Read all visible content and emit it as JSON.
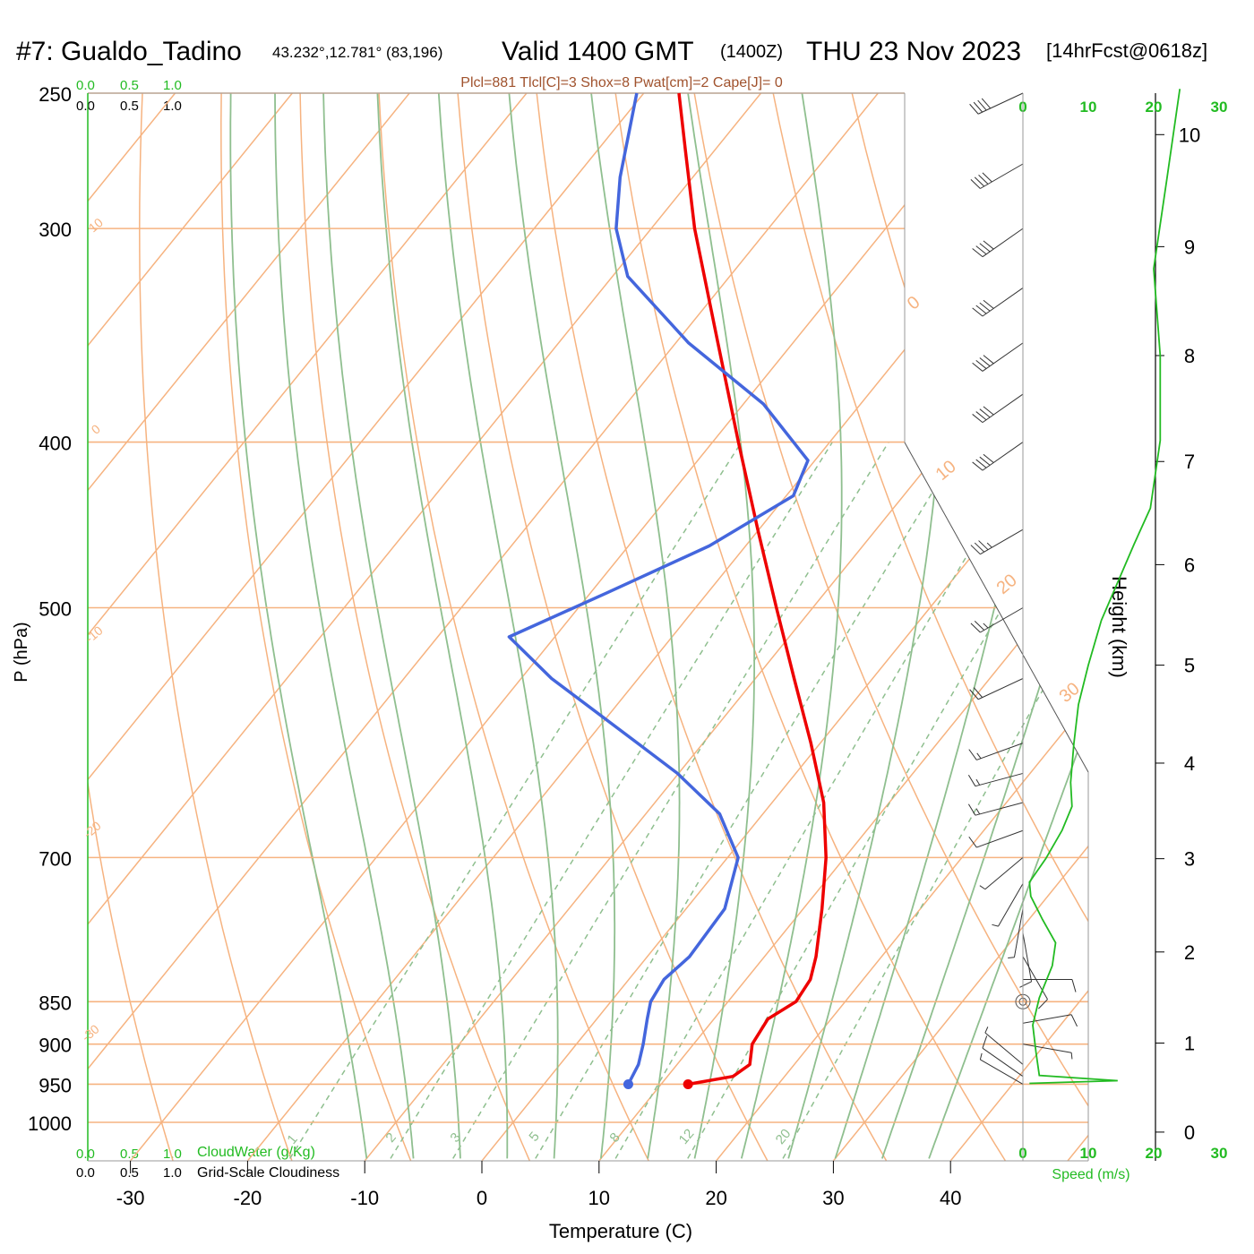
{
  "chart_data": {
    "type": "skew-t",
    "header": {
      "station": "#7: Gualdo_Tadino",
      "coords": "43.232°,12.781° (83,196)",
      "valid": "Valid 1400 GMT",
      "zulu": "(1400Z)",
      "date": "THU 23 Nov 2023",
      "forecast": "[14hrFcst@0618z]"
    },
    "indices": "Plcl=881 Tlcl[C]=3 Shox=8 Pwat[cm]=2 Cape[J]= 0",
    "ylabel": "P (hPa)",
    "xlabel": "Temperature (C)",
    "height_label": "Height (km)",
    "speed_label": "Speed (m/s)",
    "cloud_labels": {
      "cloudwater": "CloudWater (g/Kg)",
      "cloudiness": "Grid-Scale Cloudiness",
      "ticks": [
        "0.0",
        "0.5",
        "1.0"
      ]
    },
    "pressure_ticks": [
      250,
      300,
      400,
      500,
      700,
      850,
      900,
      950,
      1000
    ],
    "temperature_ticks": [
      -30,
      -20,
      -10,
      0,
      10,
      20,
      30,
      40
    ],
    "height_ticks_km": [
      0,
      1,
      2,
      3,
      4,
      5,
      6,
      7,
      8,
      9,
      10
    ],
    "speed_ticks": [
      "0",
      "10",
      "20",
      "30"
    ],
    "isotherm_labels": [
      "10",
      "0",
      "-10",
      "-20",
      "-30",
      "0",
      "10",
      "20",
      "30"
    ],
    "mixing_ratio_labels": [
      "1",
      "2",
      "3",
      "5",
      "8",
      "12",
      "20"
    ],
    "mixing_ratios_gkg": [
      1,
      2,
      3,
      5,
      8,
      12,
      20
    ],
    "temperature_profile": [
      {
        "p": 950,
        "t": 12.3
      },
      {
        "p": 940,
        "t": 15.6
      },
      {
        "p": 925,
        "t": 16.2
      },
      {
        "p": 900,
        "t": 15.0
      },
      {
        "p": 870,
        "t": 14.6
      },
      {
        "p": 850,
        "t": 15.8
      },
      {
        "p": 825,
        "t": 15.5
      },
      {
        "p": 800,
        "t": 14.4
      },
      {
        "p": 750,
        "t": 11.6
      },
      {
        "p": 700,
        "t": 8.4
      },
      {
        "p": 650,
        "t": 4.4
      },
      {
        "p": 600,
        "t": -0.8
      },
      {
        "p": 550,
        "t": -6.7
      },
      {
        "p": 500,
        "t": -13.1
      },
      {
        "p": 450,
        "t": -20.1
      },
      {
        "p": 400,
        "t": -27.8
      },
      {
        "p": 350,
        "t": -36.4
      },
      {
        "p": 300,
        "t": -46.3
      },
      {
        "p": 270,
        "t": -52.5
      },
      {
        "p": 250,
        "t": -57.0
      }
    ],
    "dewpoint_profile": [
      {
        "p": 950,
        "t": 7.2
      },
      {
        "p": 925,
        "t": 6.7
      },
      {
        "p": 900,
        "t": 5.7
      },
      {
        "p": 870,
        "t": 4.3
      },
      {
        "p": 850,
        "t": 3.4
      },
      {
        "p": 825,
        "t": 3.0
      },
      {
        "p": 800,
        "t": 3.6
      },
      {
        "p": 750,
        "t": 3.3
      },
      {
        "p": 700,
        "t": 0.9
      },
      {
        "p": 660,
        "t": -3.7
      },
      {
        "p": 625,
        "t": -10.1
      },
      {
        "p": 600,
        "t": -15.6
      },
      {
        "p": 550,
        "t": -27.4
      },
      {
        "p": 520,
        "t": -33.9
      },
      {
        "p": 490,
        "t": -28.6
      },
      {
        "p": 460,
        "t": -23.1
      },
      {
        "p": 430,
        "t": -19.4
      },
      {
        "p": 410,
        "t": -20.6
      },
      {
        "p": 380,
        "t": -28.3
      },
      {
        "p": 350,
        "t": -38.9
      },
      {
        "p": 320,
        "t": -48.7
      },
      {
        "p": 300,
        "t": -53.0
      },
      {
        "p": 280,
        "t": -56.2
      },
      {
        "p": 250,
        "t": -60.6
      }
    ],
    "wind_speed_profile": [
      {
        "z": 0.55,
        "v": 1.0
      },
      {
        "z": 0.58,
        "v": 14.5
      },
      {
        "z": 0.64,
        "v": 2.5
      },
      {
        "z": 0.9,
        "v": 2.0
      },
      {
        "z": 1.2,
        "v": 1.5
      },
      {
        "z": 1.5,
        "v": 2.5
      },
      {
        "z": 1.85,
        "v": 4.5
      },
      {
        "z": 2.1,
        "v": 5.0
      },
      {
        "z": 2.35,
        "v": 3.0
      },
      {
        "z": 2.6,
        "v": 1.2
      },
      {
        "z": 2.75,
        "v": 1.0
      },
      {
        "z": 3.0,
        "v": 3.5
      },
      {
        "z": 3.3,
        "v": 6.0
      },
      {
        "z": 3.55,
        "v": 7.5
      },
      {
        "z": 3.8,
        "v": 7.3
      },
      {
        "z": 4.2,
        "v": 7.8
      },
      {
        "z": 4.6,
        "v": 8.5
      },
      {
        "z": 5.0,
        "v": 10.0
      },
      {
        "z": 5.45,
        "v": 12.0
      },
      {
        "z": 6.2,
        "v": 17.0
      },
      {
        "z": 6.55,
        "v": 19.5
      },
      {
        "z": 7.2,
        "v": 21.0
      },
      {
        "z": 8.0,
        "v": 21.0
      },
      {
        "z": 8.8,
        "v": 20.0
      },
      {
        "z": 9.6,
        "v": 22.0
      },
      {
        "z": 10.4,
        "v": 24.0
      }
    ],
    "wind_barbs": [
      {
        "p": 950,
        "dir": 300,
        "spd": 5
      },
      {
        "p": 940,
        "dir": 305,
        "spd": 10
      },
      {
        "p": 925,
        "dir": 310,
        "spd": 5
      },
      {
        "p": 900,
        "dir": 100,
        "spd": 5
      },
      {
        "p": 875,
        "dir": 80,
        "spd": 10
      },
      {
        "p": 850,
        "dir": 0,
        "spd": 0
      },
      {
        "p": 825,
        "dir": 90,
        "spd": 10
      },
      {
        "p": 800,
        "dir": 150,
        "spd": 10
      },
      {
        "p": 775,
        "dir": 170,
        "spd": 10
      },
      {
        "p": 750,
        "dir": 190,
        "spd": 5
      },
      {
        "p": 725,
        "dir": 210,
        "spd": 5
      },
      {
        "p": 700,
        "dir": 230,
        "spd": 5
      },
      {
        "p": 675,
        "dir": 250,
        "spd": 10
      },
      {
        "p": 650,
        "dir": 255,
        "spd": 15
      },
      {
        "p": 625,
        "dir": 255,
        "spd": 15
      },
      {
        "p": 600,
        "dir": 250,
        "spd": 15
      },
      {
        "p": 550,
        "dir": 245,
        "spd": 20
      },
      {
        "p": 500,
        "dir": 240,
        "spd": 25
      },
      {
        "p": 450,
        "dir": 240,
        "spd": 35
      },
      {
        "p": 400,
        "dir": 235,
        "spd": 40
      },
      {
        "p": 375,
        "dir": 235,
        "spd": 40
      },
      {
        "p": 350,
        "dir": 235,
        "spd": 40
      },
      {
        "p": 325,
        "dir": 235,
        "spd": 40
      },
      {
        "p": 300,
        "dir": 235,
        "spd": 40
      },
      {
        "p": 275,
        "dir": 240,
        "spd": 40
      },
      {
        "p": 250,
        "dir": 245,
        "spd": 40
      }
    ]
  },
  "colors": {
    "isotherm": "#f6b380",
    "dry_adiabat": "#f6b380",
    "moist_adiabat": "#8fbf8f",
    "mixing_ratio": "#8fbf8f",
    "temperature": "#ee0000",
    "dewpoint": "#4466dd",
    "speed": "#22bb22",
    "green_text": "#22bb22",
    "index_text": "#a0522d",
    "axis": "#000000"
  }
}
